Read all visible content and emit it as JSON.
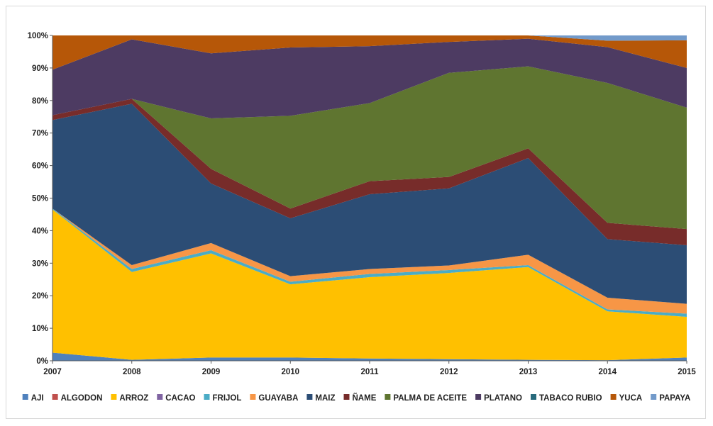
{
  "chart_data": {
    "type": "area",
    "stacked": "percent",
    "title": "",
    "xlabel": "",
    "ylabel": "",
    "x": [
      "2007",
      "2008",
      "2009",
      "2010",
      "2011",
      "2012",
      "2013",
      "2014",
      "2015"
    ],
    "yticks": [
      "0%",
      "10%",
      "20%",
      "30%",
      "40%",
      "50%",
      "60%",
      "70%",
      "80%",
      "90%",
      "100%"
    ],
    "ylim": [
      0,
      100
    ],
    "grid": false,
    "legend": "bottom",
    "series": [
      {
        "name": "AJI",
        "color": "#4f81bd",
        "values": [
          2.5,
          0.3,
          1.0,
          1.0,
          0.7,
          0.5,
          0.3,
          0.2,
          1.0
        ]
      },
      {
        "name": "ALGODON",
        "color": "#c0504d",
        "values": [
          0,
          0,
          0,
          0,
          0,
          0,
          0,
          0,
          0
        ]
      },
      {
        "name": "ARROZ",
        "color": "#ffc000",
        "values": [
          44.0,
          27.0,
          32.0,
          22.5,
          25.0,
          26.5,
          28.5,
          15.0,
          12.5
        ]
      },
      {
        "name": "CACAO",
        "color": "#8064a2",
        "values": [
          0,
          0,
          0,
          0,
          0,
          0,
          0,
          0,
          0
        ]
      },
      {
        "name": "FRIJOL",
        "color": "#4bacc6",
        "values": [
          0.3,
          0.9,
          1.0,
          0.8,
          1.0,
          0.9,
          0.6,
          0.6,
          1.0
        ]
      },
      {
        "name": "GUAYABA",
        "color": "#f79646",
        "values": [
          0,
          1.2,
          2.2,
          1.7,
          1.5,
          1.4,
          3.2,
          3.6,
          3.0
        ]
      },
      {
        "name": "MAIZ",
        "color": "#2c4d75",
        "values": [
          27.2,
          49.6,
          18.3,
          17.8,
          23.0,
          23.7,
          29.7,
          18.0,
          18.0
        ]
      },
      {
        "name": "ÑAME",
        "color": "#772c2a",
        "values": [
          1.5,
          1.5,
          4.5,
          3.0,
          4.0,
          3.5,
          3.0,
          5.0,
          5.0
        ]
      },
      {
        "name": "PALMA DE ACEITE",
        "color": "#5f7530",
        "values": [
          0,
          0,
          15.5,
          28.5,
          24.0,
          32.0,
          25.2,
          43.0,
          37.3
        ]
      },
      {
        "name": "PLATANO",
        "color": "#4d3b62",
        "values": [
          14.0,
          18.3,
          20.0,
          21.0,
          17.5,
          9.5,
          8.5,
          11.0,
          12.2
        ]
      },
      {
        "name": "TABACO RUBIO",
        "color": "#276a7c",
        "values": [
          0,
          0,
          0,
          0,
          0,
          0,
          0,
          0,
          0
        ]
      },
      {
        "name": "YUCA",
        "color": "#b65708",
        "values": [
          10.5,
          1.2,
          5.5,
          3.7,
          3.3,
          2.0,
          1.0,
          2.0,
          8.5
        ]
      },
      {
        "name": "PAPAYA",
        "color": "#729aca",
        "values": [
          0,
          0,
          0,
          0,
          0,
          0,
          0,
          1.6,
          1.5
        ]
      }
    ]
  }
}
